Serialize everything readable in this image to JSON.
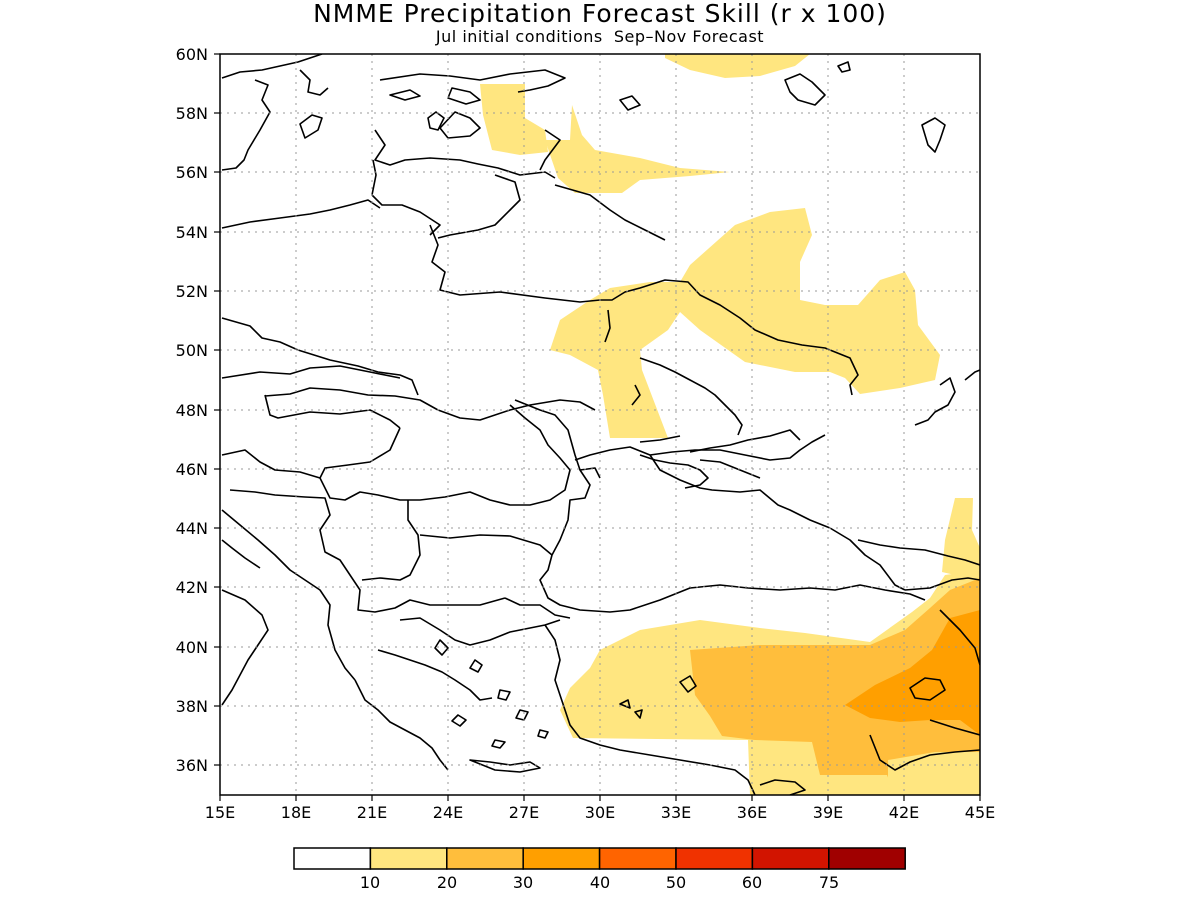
{
  "header": {
    "title": "NMME Precipitation Forecast Skill (r x 100)",
    "subtitle": "Jul initial conditions  Sep–Nov Forecast"
  },
  "map": {
    "lon_range": [
      15,
      45
    ],
    "lat_range": [
      35,
      60
    ],
    "lat_labels": [
      "60N",
      "58N",
      "56N",
      "54N",
      "52N",
      "50N",
      "48N",
      "46N",
      "44N",
      "42N",
      "40N",
      "38N",
      "36N"
    ],
    "lon_labels": [
      "15E",
      "18E",
      "21E",
      "24E",
      "27E",
      "30E",
      "33E",
      "36E",
      "39E",
      "42E",
      "45E"
    ],
    "grid": "dotted",
    "coastline_color": "#000000"
  },
  "colorbar": {
    "labels": [
      "10",
      "20",
      "30",
      "40",
      "50",
      "60",
      "75"
    ],
    "colors": [
      "#ffffff",
      "#ffe680",
      "#ffbe3c",
      "#ff9f00",
      "#ff6400",
      "#f03200",
      "#d21400",
      "#a00000"
    ]
  },
  "shading": {
    "light": "#ffe680",
    "medium": "#ffbe3c",
    "dark": "#ff9f00"
  }
}
